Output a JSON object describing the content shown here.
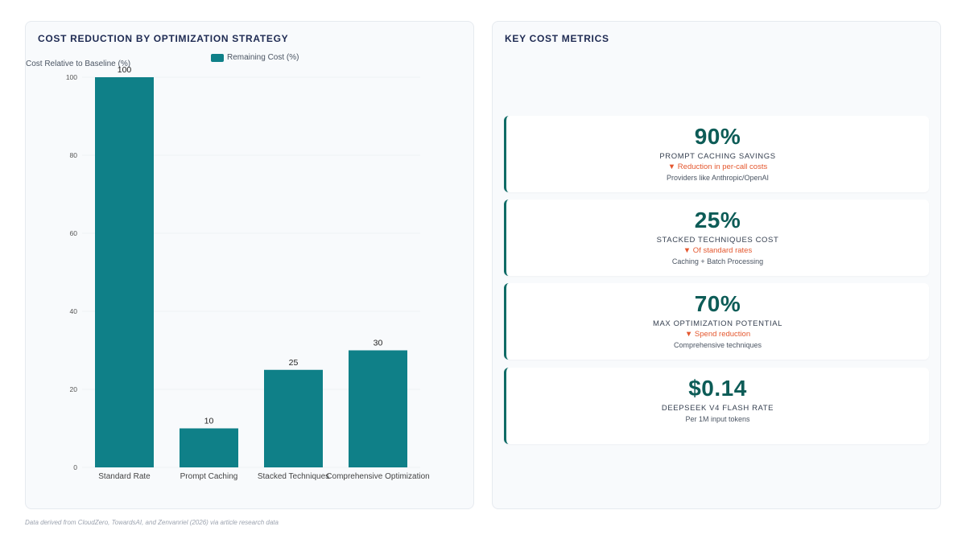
{
  "left_panel": {
    "title": "COST REDUCTION BY OPTIMIZATION STRATEGY"
  },
  "right_panel": {
    "title": "KEY COST METRICS"
  },
  "chart_data": {
    "type": "bar",
    "title": "COST REDUCTION BY OPTIMIZATION STRATEGY",
    "xlabel": "",
    "ylabel": "Cost Relative to Baseline (%)",
    "categories": [
      "Standard Rate",
      "Prompt Caching",
      "Stacked Techniques",
      "Comprehensive Optimization"
    ],
    "series": [
      {
        "name": "Remaining Cost (%)",
        "values": [
          100,
          10,
          25,
          30
        ],
        "color": "#0f8088"
      }
    ],
    "ylim": [
      0,
      100
    ],
    "yticks": [
      0,
      20,
      40,
      60,
      80,
      100
    ],
    "grid": true,
    "legend": "top-center",
    "data_labels": true
  },
  "metrics": [
    {
      "value": "90%",
      "label": "PROMPT CACHING SAVINGS",
      "delta": "▼ Reduction in per-call costs",
      "note": "Providers like Anthropic/OpenAI"
    },
    {
      "value": "25%",
      "label": "STACKED TECHNIQUES COST",
      "delta": "▼ Of standard rates",
      "note": "Caching + Batch Processing"
    },
    {
      "value": "70%",
      "label": "MAX OPTIMIZATION POTENTIAL",
      "delta": "▼ Spend reduction",
      "note": "Comprehensive techniques"
    },
    {
      "value": "$0.14",
      "label": "DEEPSEEK V4 FLASH RATE",
      "delta": "",
      "note": "Per 1M input tokens"
    }
  ],
  "colors": {
    "accent": "#0f8088",
    "metric_value": "#0d5c57",
    "delta": "#e4572e",
    "title": "#1e2a52"
  },
  "footnote": "Data derived from CloudZero, TowardsAI, and Zenvanriel (2026) via article research data"
}
